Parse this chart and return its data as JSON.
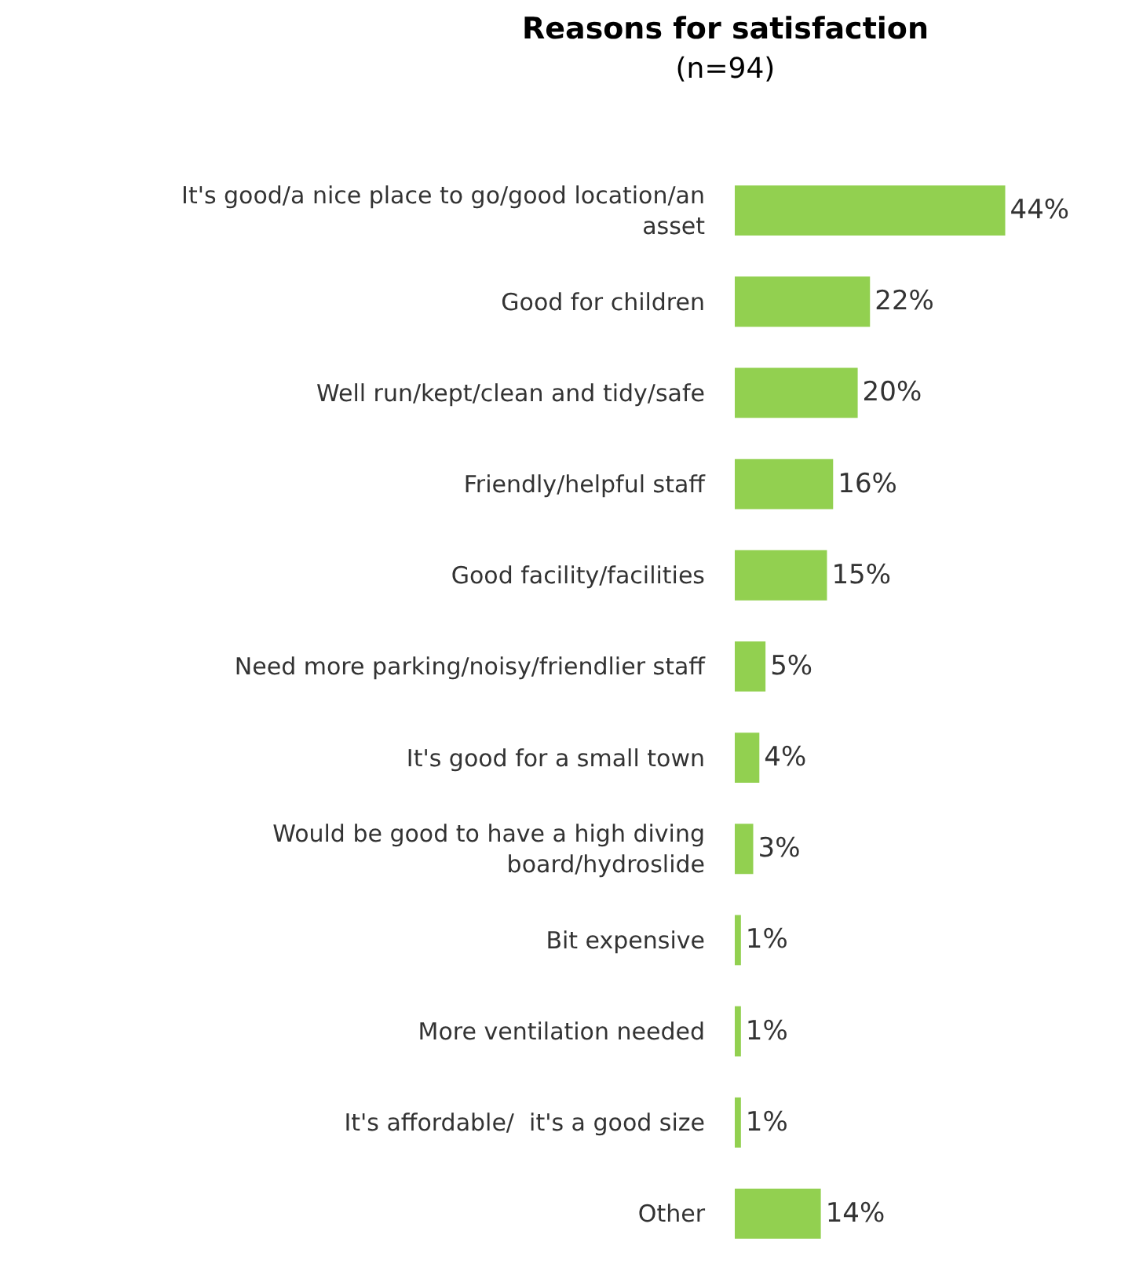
{
  "chart_data": {
    "type": "bar",
    "orientation": "horizontal",
    "title": "Reasons for satisfaction",
    "subtitle": "(n=94)",
    "categories": [
      "It's good/a nice place to go/good location/an asset",
      "Good for children",
      "Well run/kept/clean and tidy/safe",
      "Friendly/helpful staff",
      "Good facility/facilities",
      "Need more parking/noisy/friendlier staff",
      "It's good for a small town",
      "Would be good to have a high diving board/hydroslide",
      "Bit expensive",
      "More ventilation needed",
      "It's affordable/  it's a good size",
      "Other"
    ],
    "values": [
      44,
      22,
      20,
      16,
      15,
      5,
      4,
      3,
      1,
      1,
      1,
      14
    ],
    "value_labels": [
      "44%",
      "22%",
      "20%",
      "16%",
      "15%",
      "5%",
      "4%",
      "3%",
      "1%",
      "1%",
      "1%",
      "14%"
    ],
    "color": "#92d050",
    "legend": false
  }
}
